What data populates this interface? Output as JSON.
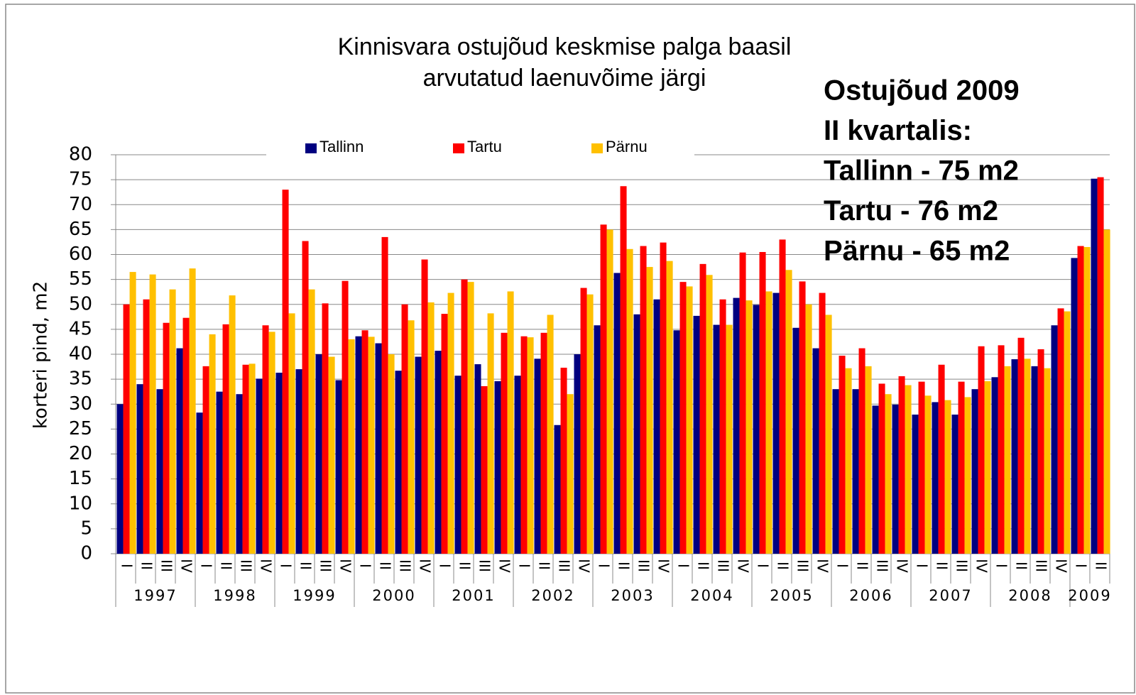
{
  "chart_data": {
    "type": "bar",
    "title": [
      "Kinnisvara ostujõud keskmise palga baasil",
      "arvutatud laenuvõime järgi"
    ],
    "annotation": [
      "Ostujõud 2009",
      "II kvartalis:",
      "Tallinn - 75 m2",
      "Tartu - 76 m2",
      "Pärnu - 65 m2"
    ],
    "y_label": "korteri pind, m2",
    "categories": [
      "I",
      "II",
      "III",
      "IV",
      "I",
      "II",
      "III",
      "IV",
      "I",
      "II",
      "III",
      "IV",
      "I",
      "II",
      "III",
      "IV",
      "I",
      "II",
      "III",
      "IV",
      "I",
      "II",
      "III",
      "IV",
      "I",
      "II",
      "III",
      "IV",
      "I",
      "II",
      "III",
      "IV",
      "I",
      "II",
      "III",
      "IV",
      "I",
      "II",
      "III",
      "IV",
      "I",
      "II",
      "III",
      "IV",
      "I",
      "II",
      "III",
      "IV",
      "I",
      "II"
    ],
    "groups": [
      "1997",
      "1998",
      "1999",
      "2000",
      "2001",
      "2002",
      "2003",
      "2004",
      "2005",
      "2006",
      "2007",
      "2008",
      "2009"
    ],
    "series": [
      {
        "name": "Tallinn",
        "color": "#000080",
        "values": [
          30,
          34,
          33,
          41.2,
          28.3,
          32.5,
          32,
          35.1,
          36.3,
          37,
          40,
          34.8,
          43.6,
          42.2,
          36.7,
          39.5,
          40.7,
          35.7,
          38,
          34.6,
          35.7,
          39.1,
          25.8,
          40,
          45.8,
          56.3,
          48,
          51,
          44.8,
          47.7,
          45.9,
          51.3,
          49.9,
          52.3,
          45.3,
          41.2,
          33,
          33,
          29.7,
          29.9,
          27.9,
          30.4,
          27.9,
          33,
          35.4,
          39,
          37.6,
          45.8,
          59.3,
          75.2
        ]
      },
      {
        "name": "Tartu",
        "color": "#ff0000",
        "values": [
          50,
          51,
          46.3,
          47.3,
          37.6,
          46,
          37.9,
          45.8,
          73,
          62.7,
          50.2,
          54.7,
          44.8,
          63.5,
          50,
          59,
          48.1,
          55,
          33.6,
          44.3,
          43.6,
          44.3,
          37.3,
          53.3,
          66,
          73.7,
          61.7,
          62.4,
          54.5,
          58.1,
          51,
          60.4,
          60.5,
          63,
          54.6,
          52.3,
          39.7,
          41.2,
          34.1,
          35.6,
          34.5,
          37.9,
          34.5,
          41.6,
          41.8,
          43.3,
          41,
          49.2,
          61.7,
          75.5
        ]
      },
      {
        "name": "Pärnu",
        "color": "#ffc000",
        "values": [
          56.5,
          56,
          53,
          57.2,
          44,
          51.8,
          38.1,
          44.5,
          48.2,
          53,
          39.5,
          43,
          43.5,
          40,
          46.8,
          50.4,
          52.3,
          54.5,
          48.2,
          52.6,
          43.4,
          47.9,
          32,
          52,
          65,
          61.1,
          57.5,
          58.7,
          53.6,
          55.9,
          45.9,
          50.8,
          52.6,
          56.9,
          50,
          47.9,
          37.2,
          37.6,
          32,
          33.8,
          31.7,
          30.8,
          31.4,
          34.6,
          37.6,
          39.1,
          37.2,
          48.6,
          61.5,
          65
        ]
      }
    ],
    "ylim": [
      0,
      80
    ],
    "yticks": [
      0,
      5,
      10,
      15,
      20,
      25,
      30,
      35,
      40,
      45,
      50,
      55,
      60,
      65,
      70,
      75,
      80
    ],
    "grid": true,
    "legend": "top"
  }
}
